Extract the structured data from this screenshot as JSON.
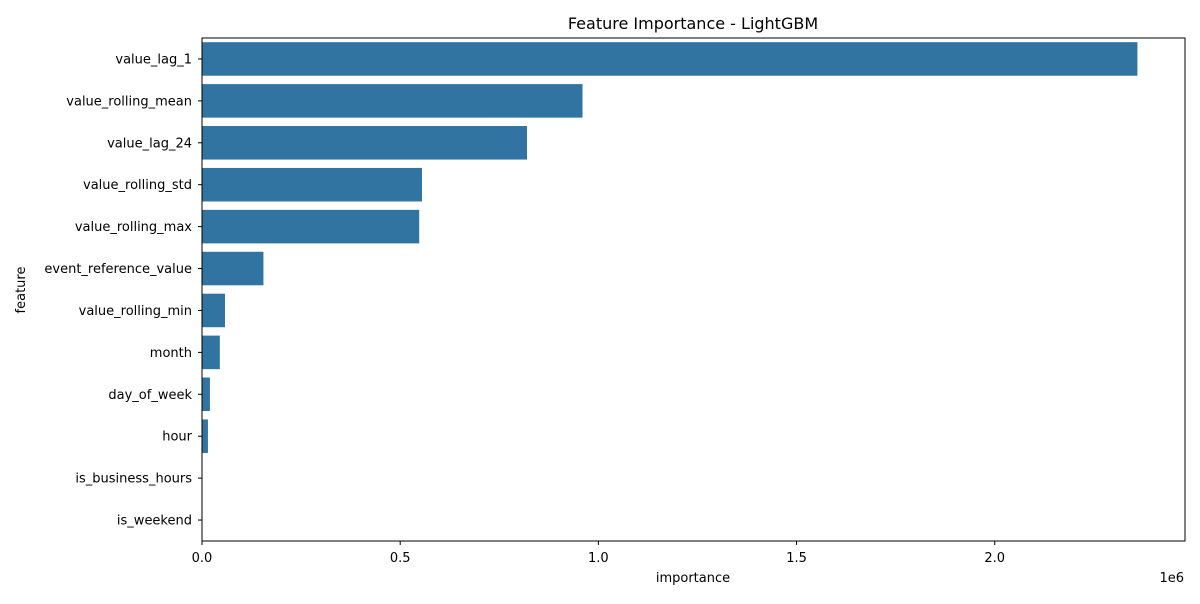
{
  "chart_data": {
    "type": "bar",
    "orientation": "horizontal",
    "title": "Feature Importance - LightGBM",
    "xlabel": "importance",
    "ylabel": "feature",
    "x_offset_label": "1e6",
    "xlim": [
      0,
      2480000
    ],
    "x_ticks": [
      0,
      500000,
      1000000,
      1500000,
      2000000
    ],
    "x_tick_labels": [
      "0.0",
      "0.5",
      "1.0",
      "1.5",
      "2.0"
    ],
    "grid": false,
    "legend": "none",
    "categories": [
      "value_lag_1",
      "value_rolling_mean",
      "value_lag_24",
      "value_rolling_std",
      "value_rolling_max",
      "event_reference_value",
      "value_rolling_min",
      "month",
      "day_of_week",
      "hour",
      "is_business_hours",
      "is_weekend"
    ],
    "values": [
      2360000,
      960000,
      820000,
      555000,
      548000,
      155000,
      58000,
      45000,
      20000,
      15000,
      0,
      0
    ],
    "colors": {
      "bar": "#3274a1",
      "axis": "#000000",
      "background": "#ffffff"
    }
  }
}
